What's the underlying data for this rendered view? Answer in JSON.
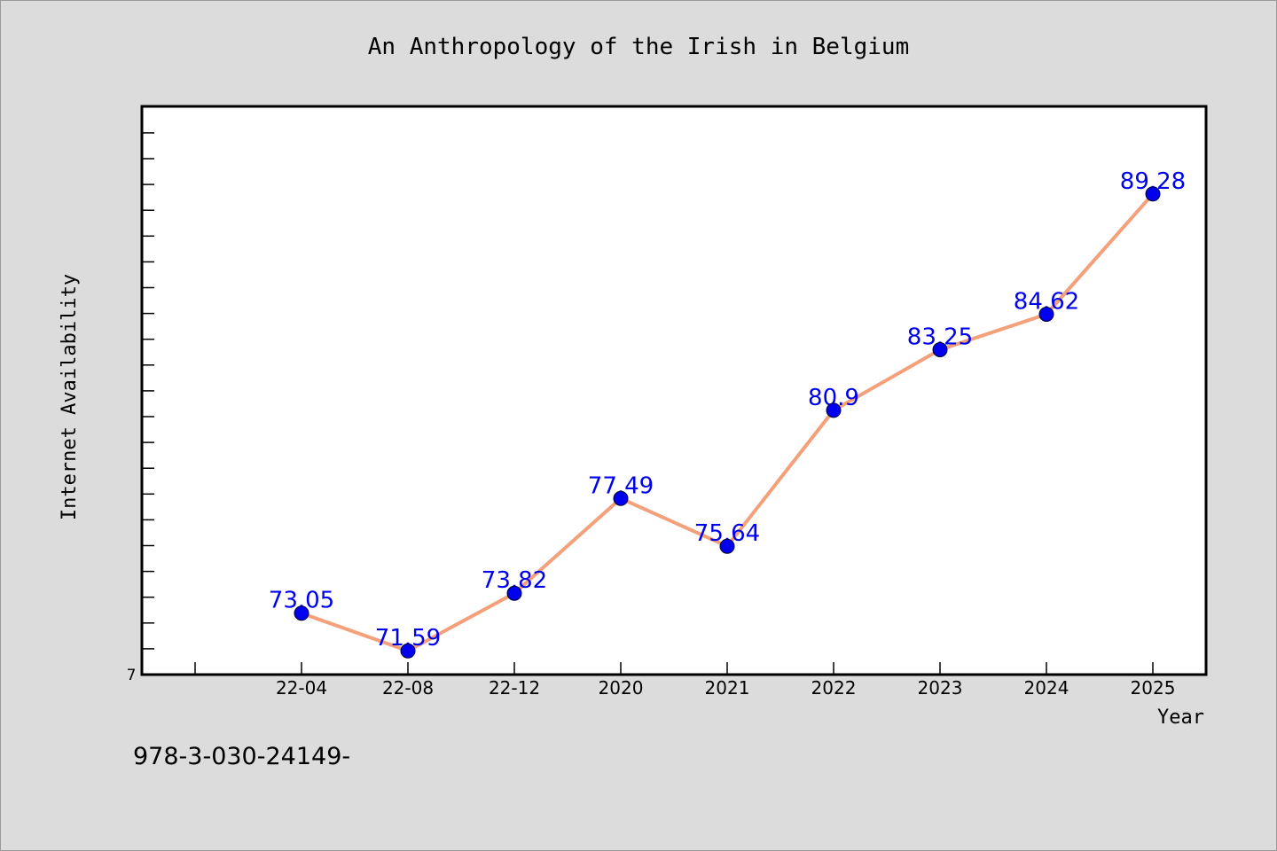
{
  "chart_data": {
    "type": "line",
    "title": "An Anthropology of the Irish in Belgium",
    "xlabel": "Year",
    "ylabel": "Internet Availability",
    "categories": [
      "22-04",
      "22-08",
      "22-12",
      "2020",
      "2021",
      "2022",
      "2023",
      "2024",
      "2025"
    ],
    "series": [
      {
        "values": [
          73.05,
          71.59,
          73.82,
          77.49,
          75.64,
          80.9,
          83.25,
          84.62,
          89.28
        ]
      }
    ],
    "data_labels": [
      "73.05",
      "71.59",
      "73.82",
      "77.49",
      "75.64",
      "80.9",
      "83.25",
      "84.62",
      "89.28"
    ],
    "ylim": [
      70.67,
      92.67
    ],
    "y_tick_label": "7",
    "grid": false,
    "colors": {
      "line": "#f4a07a",
      "marker": "#0000ee",
      "label": "#0000ee",
      "background": "#dcdcdc",
      "plot_bg": "#ffffff"
    }
  },
  "footer_text": "978-3-030-24149-"
}
